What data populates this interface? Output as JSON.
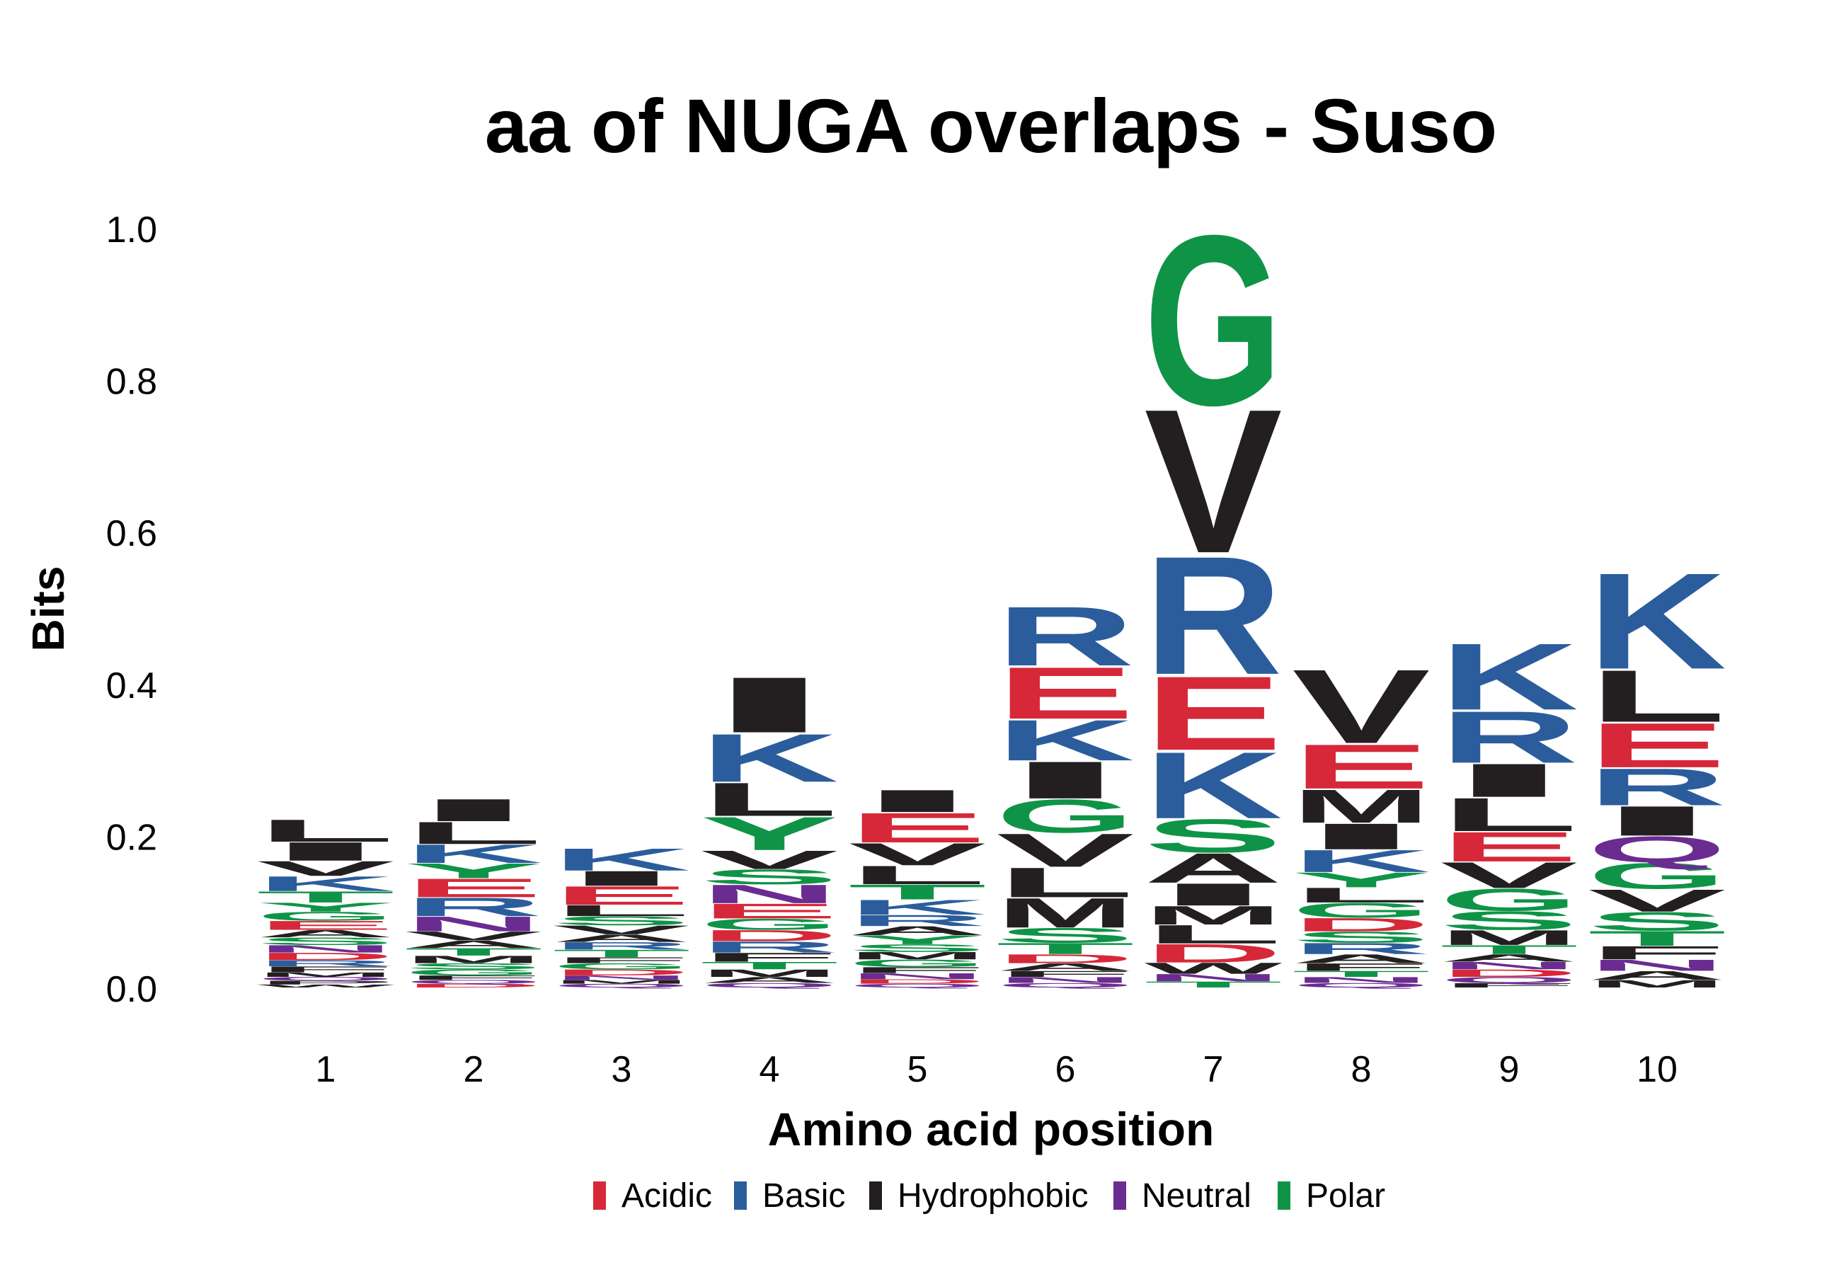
{
  "chart_data": {
    "type": "sequence_logo",
    "title": "aa of NUGA overlaps - Suso",
    "xlabel": "Amino acid position",
    "ylabel": "Bits",
    "ylim": [
      0,
      1.0
    ],
    "yticks": [
      "0.0",
      "0.2",
      "0.4",
      "0.6",
      "0.8",
      "1.0"
    ],
    "ytick_values": [
      0,
      0.2,
      0.4,
      0.6,
      0.8,
      1.0
    ],
    "categories": [
      "1",
      "2",
      "3",
      "4",
      "5",
      "6",
      "7",
      "8",
      "9",
      "10"
    ],
    "grid": false,
    "legend_position": "bottom",
    "legend": [
      {
        "name": "Acidic",
        "color": "#D62839"
      },
      {
        "name": "Basic",
        "color": "#2B5D9C"
      },
      {
        "name": "Hydrophobic",
        "color": "#231F20"
      },
      {
        "name": "Neutral",
        "color": "#6A2C91"
      },
      {
        "name": "Polar",
        "color": "#0F9447"
      }
    ],
    "class_colors": {
      "Acidic": "#D62839",
      "Basic": "#2B5D9C",
      "Hydrophobic": "#231F20",
      "Neutral": "#6A2C91",
      "Polar": "#0F9447"
    },
    "stacks": [
      {
        "position": "1",
        "letters": [
          {
            "aa": "L",
            "class": "Hydrophobic",
            "bits": 0.03
          },
          {
            "aa": "I",
            "class": "Hydrophobic",
            "bits": 0.025
          },
          {
            "aa": "V",
            "class": "Hydrophobic",
            "bits": 0.02
          },
          {
            "aa": "K",
            "class": "Basic",
            "bits": 0.02
          },
          {
            "aa": "T",
            "class": "Polar",
            "bits": 0.015
          },
          {
            "aa": "Y",
            "class": "Polar",
            "bits": 0.012
          },
          {
            "aa": "G",
            "class": "Polar",
            "bits": 0.012
          },
          {
            "aa": "E",
            "class": "Acidic",
            "bits": 0.012
          },
          {
            "aa": "A",
            "class": "Hydrophobic",
            "bits": 0.01
          },
          {
            "aa": "S",
            "class": "Polar",
            "bits": 0.01
          },
          {
            "aa": "N",
            "class": "Neutral",
            "bits": 0.01
          },
          {
            "aa": "D",
            "class": "Acidic",
            "bits": 0.01
          },
          {
            "aa": "R",
            "class": "Basic",
            "bits": 0.008
          },
          {
            "aa": "F",
            "class": "Hydrophobic",
            "bits": 0.008
          },
          {
            "aa": "M",
            "class": "Hydrophobic",
            "bits": 0.006
          },
          {
            "aa": "Q",
            "class": "Neutral",
            "bits": 0.005
          },
          {
            "aa": "P",
            "class": "Hydrophobic",
            "bits": 0.005
          },
          {
            "aa": "W",
            "class": "Hydrophobic",
            "bits": 0.004
          }
        ]
      },
      {
        "position": "2",
        "letters": [
          {
            "aa": "I",
            "class": "Hydrophobic",
            "bits": 0.03
          },
          {
            "aa": "L",
            "class": "Hydrophobic",
            "bits": 0.03
          },
          {
            "aa": "K",
            "class": "Basic",
            "bits": 0.025
          },
          {
            "aa": "Y",
            "class": "Polar",
            "bits": 0.02
          },
          {
            "aa": "E",
            "class": "Acidic",
            "bits": 0.025
          },
          {
            "aa": "R",
            "class": "Basic",
            "bits": 0.025
          },
          {
            "aa": "N",
            "class": "Neutral",
            "bits": 0.02
          },
          {
            "aa": "V",
            "class": "Hydrophobic",
            "bits": 0.012
          },
          {
            "aa": "A",
            "class": "Hydrophobic",
            "bits": 0.01
          },
          {
            "aa": "T",
            "class": "Polar",
            "bits": 0.01
          },
          {
            "aa": "M",
            "class": "Hydrophobic",
            "bits": 0.01
          },
          {
            "aa": "S",
            "class": "Polar",
            "bits": 0.008
          },
          {
            "aa": "G",
            "class": "Polar",
            "bits": 0.008
          },
          {
            "aa": "F",
            "class": "Hydrophobic",
            "bits": 0.006
          },
          {
            "aa": "Q",
            "class": "Neutral",
            "bits": 0.005
          },
          {
            "aa": "D",
            "class": "Acidic",
            "bits": 0.005
          }
        ]
      },
      {
        "position": "3",
        "letters": [
          {
            "aa": "K",
            "class": "Basic",
            "bits": 0.03
          },
          {
            "aa": "I",
            "class": "Hydrophobic",
            "bits": 0.02
          },
          {
            "aa": "E",
            "class": "Acidic",
            "bits": 0.025
          },
          {
            "aa": "L",
            "class": "Hydrophobic",
            "bits": 0.015
          },
          {
            "aa": "S",
            "class": "Polar",
            "bits": 0.012
          },
          {
            "aa": "V",
            "class": "Hydrophobic",
            "bits": 0.012
          },
          {
            "aa": "A",
            "class": "Hydrophobic",
            "bits": 0.01
          },
          {
            "aa": "R",
            "class": "Basic",
            "bits": 0.01
          },
          {
            "aa": "T",
            "class": "Polar",
            "bits": 0.01
          },
          {
            "aa": "F",
            "class": "Hydrophobic",
            "bits": 0.008
          },
          {
            "aa": "G",
            "class": "Polar",
            "bits": 0.008
          },
          {
            "aa": "D",
            "class": "Acidic",
            "bits": 0.008
          },
          {
            "aa": "N",
            "class": "Neutral",
            "bits": 0.006
          },
          {
            "aa": "M",
            "class": "Hydrophobic",
            "bits": 0.005
          },
          {
            "aa": "Q",
            "class": "Neutral",
            "bits": 0.005
          }
        ]
      },
      {
        "position": "4",
        "letters": [
          {
            "aa": "I",
            "class": "Hydrophobic",
            "bits": 0.075
          },
          {
            "aa": "K",
            "class": "Basic",
            "bits": 0.065
          },
          {
            "aa": "L",
            "class": "Hydrophobic",
            "bits": 0.045
          },
          {
            "aa": "Y",
            "class": "Polar",
            "bits": 0.045
          },
          {
            "aa": "V",
            "class": "Hydrophobic",
            "bits": 0.025
          },
          {
            "aa": "S",
            "class": "Polar",
            "bits": 0.02
          },
          {
            "aa": "N",
            "class": "Neutral",
            "bits": 0.025
          },
          {
            "aa": "E",
            "class": "Acidic",
            "bits": 0.02
          },
          {
            "aa": "G",
            "class": "Polar",
            "bits": 0.015
          },
          {
            "aa": "D",
            "class": "Acidic",
            "bits": 0.015
          },
          {
            "aa": "R",
            "class": "Basic",
            "bits": 0.015
          },
          {
            "aa": "F",
            "class": "Hydrophobic",
            "bits": 0.012
          },
          {
            "aa": "T",
            "class": "Polar",
            "bits": 0.01
          },
          {
            "aa": "M",
            "class": "Hydrophobic",
            "bits": 0.01
          },
          {
            "aa": "A",
            "class": "Hydrophobic",
            "bits": 0.008
          },
          {
            "aa": "Q",
            "class": "Neutral",
            "bits": 0.006
          }
        ]
      },
      {
        "position": "5",
        "letters": [
          {
            "aa": "I",
            "class": "Hydrophobic",
            "bits": 0.03
          },
          {
            "aa": "E",
            "class": "Acidic",
            "bits": 0.04
          },
          {
            "aa": "V",
            "class": "Hydrophobic",
            "bits": 0.03
          },
          {
            "aa": "L",
            "class": "Hydrophobic",
            "bits": 0.025
          },
          {
            "aa": "T",
            "class": "Polar",
            "bits": 0.02
          },
          {
            "aa": "K",
            "class": "Basic",
            "bits": 0.02
          },
          {
            "aa": "R",
            "class": "Basic",
            "bits": 0.015
          },
          {
            "aa": "A",
            "class": "Hydrophobic",
            "bits": 0.012
          },
          {
            "aa": "Y",
            "class": "Polar",
            "bits": 0.012
          },
          {
            "aa": "S",
            "class": "Polar",
            "bits": 0.01
          },
          {
            "aa": "M",
            "class": "Hydrophobic",
            "bits": 0.01
          },
          {
            "aa": "G",
            "class": "Polar",
            "bits": 0.01
          },
          {
            "aa": "F",
            "class": "Hydrophobic",
            "bits": 0.008
          },
          {
            "aa": "N",
            "class": "Neutral",
            "bits": 0.008
          },
          {
            "aa": "D",
            "class": "Acidic",
            "bits": 0.006
          },
          {
            "aa": "Q",
            "class": "Neutral",
            "bits": 0.005
          }
        ]
      },
      {
        "position": "6",
        "letters": [
          {
            "aa": "R",
            "class": "Basic",
            "bits": 0.08
          },
          {
            "aa": "E",
            "class": "Acidic",
            "bits": 0.07
          },
          {
            "aa": "K",
            "class": "Basic",
            "bits": 0.055
          },
          {
            "aa": "I",
            "class": "Hydrophobic",
            "bits": 0.05
          },
          {
            "aa": "G",
            "class": "Polar",
            "bits": 0.045
          },
          {
            "aa": "V",
            "class": "Hydrophobic",
            "bits": 0.045
          },
          {
            "aa": "L",
            "class": "Hydrophobic",
            "bits": 0.04
          },
          {
            "aa": "M",
            "class": "Hydrophobic",
            "bits": 0.04
          },
          {
            "aa": "S",
            "class": "Polar",
            "bits": 0.02
          },
          {
            "aa": "T",
            "class": "Polar",
            "bits": 0.015
          },
          {
            "aa": "D",
            "class": "Acidic",
            "bits": 0.012
          },
          {
            "aa": "A",
            "class": "Hydrophobic",
            "bits": 0.01
          },
          {
            "aa": "F",
            "class": "Hydrophobic",
            "bits": 0.008
          },
          {
            "aa": "N",
            "class": "Neutral",
            "bits": 0.008
          },
          {
            "aa": "Q",
            "class": "Neutral",
            "bits": 0.006
          }
        ]
      },
      {
        "position": "7",
        "letters": [
          {
            "aa": "G",
            "class": "Polar",
            "bits": 0.23
          },
          {
            "aa": "V",
            "class": "Hydrophobic",
            "bits": 0.195
          },
          {
            "aa": "R",
            "class": "Basic",
            "bits": 0.16
          },
          {
            "aa": "E",
            "class": "Acidic",
            "bits": 0.1
          },
          {
            "aa": "K",
            "class": "Basic",
            "bits": 0.09
          },
          {
            "aa": "S",
            "class": "Polar",
            "bits": 0.045
          },
          {
            "aa": "A",
            "class": "Hydrophobic",
            "bits": 0.04
          },
          {
            "aa": "I",
            "class": "Hydrophobic",
            "bits": 0.03
          },
          {
            "aa": "M",
            "class": "Hydrophobic",
            "bits": 0.025
          },
          {
            "aa": "L",
            "class": "Hydrophobic",
            "bits": 0.025
          },
          {
            "aa": "D",
            "class": "Acidic",
            "bits": 0.025
          },
          {
            "aa": "W",
            "class": "Hydrophobic",
            "bits": 0.015
          },
          {
            "aa": "N",
            "class": "Neutral",
            "bits": 0.01
          },
          {
            "aa": "T",
            "class": "Polar",
            "bits": 0.008
          }
        ]
      },
      {
        "position": "8",
        "letters": [
          {
            "aa": "V",
            "class": "Hydrophobic",
            "bits": 0.1
          },
          {
            "aa": "E",
            "class": "Acidic",
            "bits": 0.06
          },
          {
            "aa": "M",
            "class": "Hydrophobic",
            "bits": 0.045
          },
          {
            "aa": "I",
            "class": "Hydrophobic",
            "bits": 0.035
          },
          {
            "aa": "K",
            "class": "Basic",
            "bits": 0.03
          },
          {
            "aa": "Y",
            "class": "Polar",
            "bits": 0.02
          },
          {
            "aa": "L",
            "class": "Hydrophobic",
            "bits": 0.02
          },
          {
            "aa": "G",
            "class": "Polar",
            "bits": 0.02
          },
          {
            "aa": "D",
            "class": "Acidic",
            "bits": 0.018
          },
          {
            "aa": "S",
            "class": "Polar",
            "bits": 0.015
          },
          {
            "aa": "R",
            "class": "Basic",
            "bits": 0.015
          },
          {
            "aa": "A",
            "class": "Hydrophobic",
            "bits": 0.012
          },
          {
            "aa": "F",
            "class": "Hydrophobic",
            "bits": 0.01
          },
          {
            "aa": "T",
            "class": "Polar",
            "bits": 0.008
          },
          {
            "aa": "N",
            "class": "Neutral",
            "bits": 0.008
          },
          {
            "aa": "Q",
            "class": "Neutral",
            "bits": 0.006
          }
        ]
      },
      {
        "position": "9",
        "letters": [
          {
            "aa": "K",
            "class": "Basic",
            "bits": 0.09
          },
          {
            "aa": "R",
            "class": "Basic",
            "bits": 0.07
          },
          {
            "aa": "I",
            "class": "Hydrophobic",
            "bits": 0.045
          },
          {
            "aa": "L",
            "class": "Hydrophobic",
            "bits": 0.045
          },
          {
            "aa": "E",
            "class": "Acidic",
            "bits": 0.04
          },
          {
            "aa": "V",
            "class": "Hydrophobic",
            "bits": 0.035
          },
          {
            "aa": "G",
            "class": "Polar",
            "bits": 0.03
          },
          {
            "aa": "S",
            "class": "Polar",
            "bits": 0.025
          },
          {
            "aa": "M",
            "class": "Hydrophobic",
            "bits": 0.02
          },
          {
            "aa": "T",
            "class": "Polar",
            "bits": 0.012
          },
          {
            "aa": "A",
            "class": "Hydrophobic",
            "bits": 0.01
          },
          {
            "aa": "N",
            "class": "Neutral",
            "bits": 0.01
          },
          {
            "aa": "D",
            "class": "Acidic",
            "bits": 0.01
          },
          {
            "aa": "Q",
            "class": "Neutral",
            "bits": 0.008
          },
          {
            "aa": "F",
            "class": "Hydrophobic",
            "bits": 0.006
          }
        ]
      },
      {
        "position": "10",
        "letters": [
          {
            "aa": "K",
            "class": "Basic",
            "bits": 0.13
          },
          {
            "aa": "L",
            "class": "Hydrophobic",
            "bits": 0.07
          },
          {
            "aa": "E",
            "class": "Acidic",
            "bits": 0.06
          },
          {
            "aa": "R",
            "class": "Basic",
            "bits": 0.05
          },
          {
            "aa": "I",
            "class": "Hydrophobic",
            "bits": 0.04
          },
          {
            "aa": "Q",
            "class": "Neutral",
            "bits": 0.035
          },
          {
            "aa": "G",
            "class": "Polar",
            "bits": 0.035
          },
          {
            "aa": "V",
            "class": "Hydrophobic",
            "bits": 0.03
          },
          {
            "aa": "S",
            "class": "Polar",
            "bits": 0.025
          },
          {
            "aa": "T",
            "class": "Polar",
            "bits": 0.02
          },
          {
            "aa": "F",
            "class": "Hydrophobic",
            "bits": 0.018
          },
          {
            "aa": "N",
            "class": "Neutral",
            "bits": 0.015
          },
          {
            "aa": "A",
            "class": "Hydrophobic",
            "bits": 0.012
          },
          {
            "aa": "M",
            "class": "Hydrophobic",
            "bits": 0.01
          }
        ]
      }
    ]
  }
}
